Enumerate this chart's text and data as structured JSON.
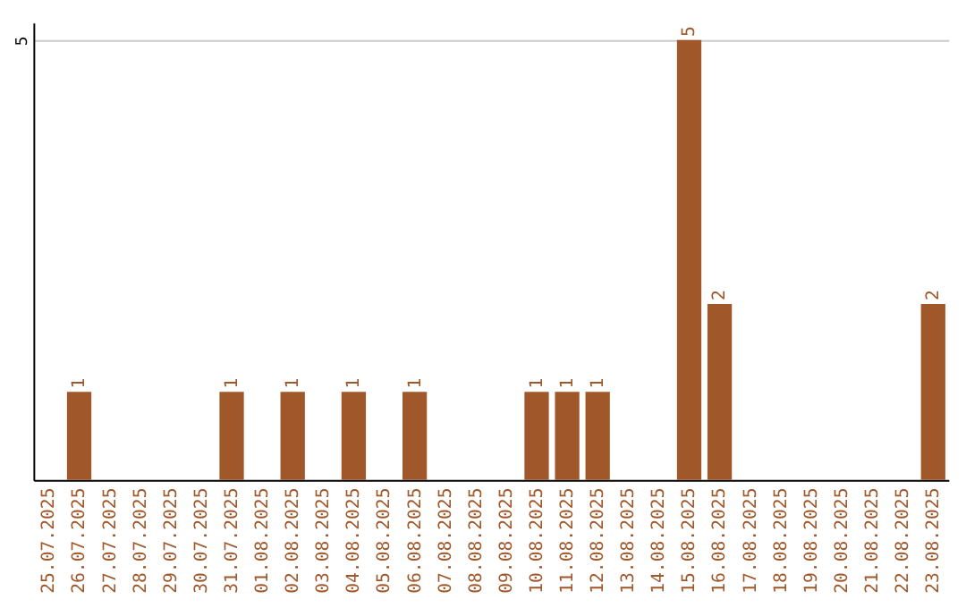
{
  "chart_data": {
    "type": "bar",
    "categories": [
      "25.07.2025",
      "26.07.2025",
      "27.07.2025",
      "28.07.2025",
      "29.07.2025",
      "30.07.2025",
      "31.07.2025",
      "01.08.2025",
      "02.08.2025",
      "03.08.2025",
      "04.08.2025",
      "05.08.2025",
      "06.08.2025",
      "07.08.2025",
      "08.08.2025",
      "09.08.2025",
      "10.08.2025",
      "11.08.2025",
      "12.08.2025",
      "13.08.2025",
      "14.08.2025",
      "15.08.2025",
      "16.08.2025",
      "17.08.2025",
      "18.08.2025",
      "19.08.2025",
      "20.08.2025",
      "21.08.2025",
      "22.08.2025",
      "23.08.2025"
    ],
    "values": [
      0,
      1,
      0,
      0,
      0,
      0,
      1,
      0,
      1,
      0,
      1,
      0,
      1,
      0,
      0,
      0,
      1,
      1,
      1,
      0,
      0,
      5,
      2,
      0,
      0,
      0,
      0,
      0,
      0,
      2
    ],
    "value_labels": [
      null,
      "1",
      null,
      null,
      null,
      null,
      "1",
      null,
      "1",
      null,
      "1",
      null,
      "1",
      null,
      null,
      null,
      "1",
      "1",
      "1",
      null,
      null,
      "5",
      "2",
      null,
      null,
      null,
      null,
      null,
      null,
      "2"
    ],
    "color": "#a0582a",
    "ylim": [
      0,
      5.2
    ],
    "yticks": [
      5
    ],
    "grid": "y"
  }
}
